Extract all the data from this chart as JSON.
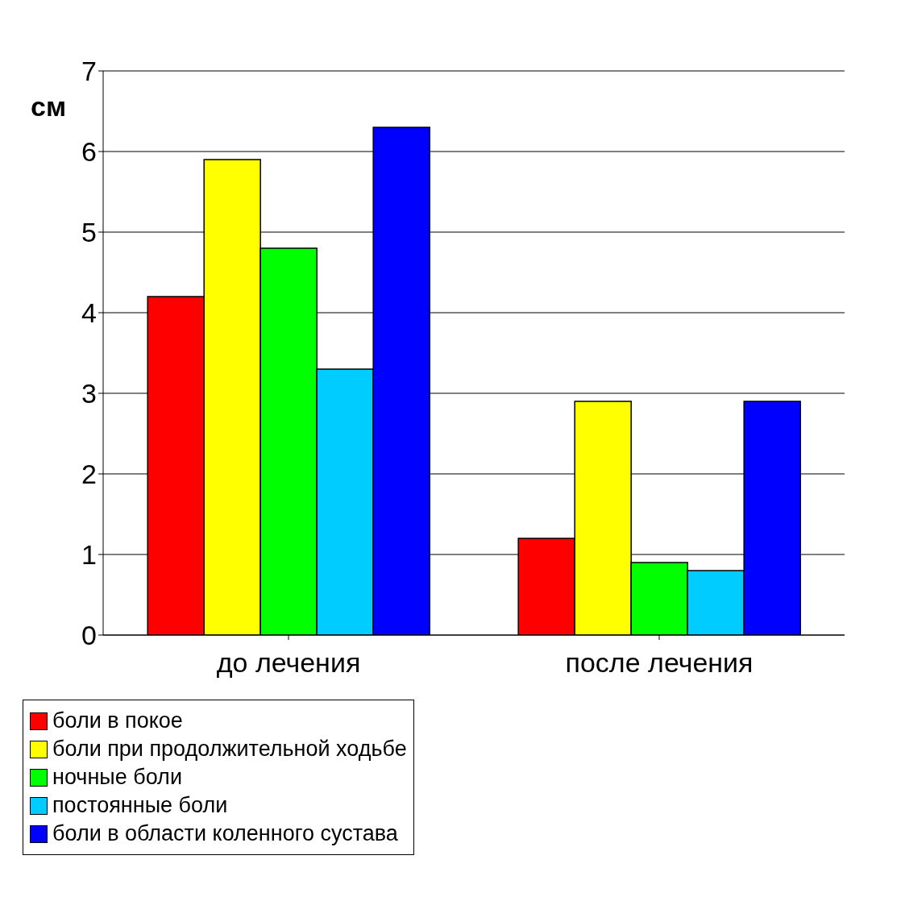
{
  "chart_data": {
    "type": "bar",
    "ylabel": "см",
    "categories": [
      "до лечения",
      "после лечения"
    ],
    "series": [
      {
        "name": "боли в покое",
        "color": "#ff0000",
        "values": [
          4.2,
          1.2
        ]
      },
      {
        "name": "боли при продолжительной ходьбе",
        "color": "#ffff00",
        "values": [
          5.9,
          2.9
        ]
      },
      {
        "name": "ночные боли",
        "color": "#00ff00",
        "values": [
          4.8,
          0.9
        ]
      },
      {
        "name": "постоянные боли",
        "color": "#00ccff",
        "values": [
          3.3,
          0.8
        ]
      },
      {
        "name": "боли в области коленного сустава",
        "color": "#0000ff",
        "values": [
          6.3,
          2.9
        ]
      }
    ],
    "ylim": [
      0,
      7
    ],
    "yticks": [
      0,
      1,
      2,
      3,
      4,
      5,
      6,
      7
    ],
    "grid": "y",
    "legend": "bottom left"
  }
}
